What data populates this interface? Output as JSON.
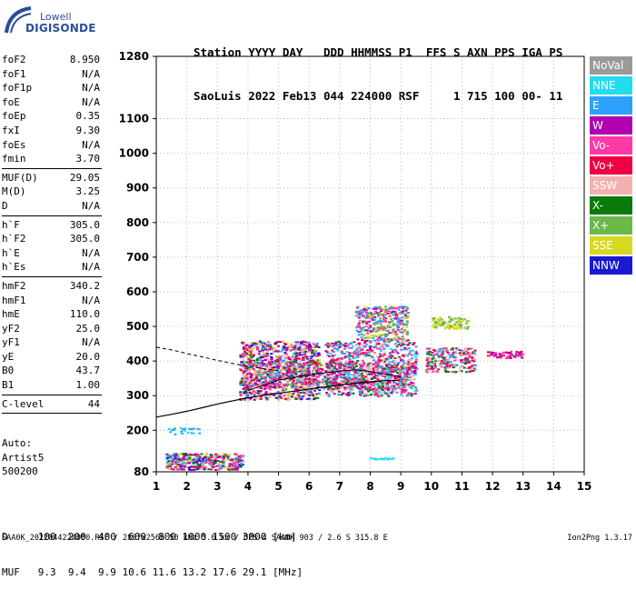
{
  "logo": {
    "line1": "Lowell",
    "line2": "DIGISONDE"
  },
  "header": {
    "line1": "Station YYYY DAY   DDD HHMMSS P1  FFS S AXN PPS IGA PS",
    "line2": "SaoLuis 2022 Feb13 044 224000 RSF     1 715 100 00- 11"
  },
  "params_group1": [
    {
      "k": "foF2",
      "v": "8.950"
    },
    {
      "k": "foF1",
      "v": "N/A"
    },
    {
      "k": "foF1p",
      "v": "N/A"
    },
    {
      "k": "foE",
      "v": "N/A"
    },
    {
      "k": "foEp",
      "v": "0.35"
    },
    {
      "k": "fxI",
      "v": "9.30"
    },
    {
      "k": "foEs",
      "v": "N/A"
    },
    {
      "k": "fmin",
      "v": "3.70"
    }
  ],
  "params_group2": [
    {
      "k": "MUF(D)",
      "v": "29.05"
    },
    {
      "k": "M(D)",
      "v": "3.25"
    },
    {
      "k": "D",
      "v": "N/A"
    }
  ],
  "params_group3": [
    {
      "k": "h`F",
      "v": "305.0"
    },
    {
      "k": "h`F2",
      "v": "305.0"
    },
    {
      "k": "h`E",
      "v": "N/A"
    },
    {
      "k": "h`Es",
      "v": "N/A"
    }
  ],
  "params_group4": [
    {
      "k": "hmF2",
      "v": "340.2"
    },
    {
      "k": "hmF1",
      "v": "N/A"
    },
    {
      "k": "hmE",
      "v": "110.0"
    },
    {
      "k": "yF2",
      "v": "25.0"
    },
    {
      "k": "yF1",
      "v": "N/A"
    },
    {
      "k": "yE",
      "v": "20.0"
    },
    {
      "k": "B0",
      "v": "43.7"
    },
    {
      "k": "B1",
      "v": "1.00"
    }
  ],
  "params_group5": [
    {
      "k": "C-level",
      "v": "44"
    }
  ],
  "auto": {
    "line1": "Auto:",
    "line2": "Artist5",
    "line3": "500200"
  },
  "legend": [
    {
      "label": "NoVal",
      "color": "#9a9a9a"
    },
    {
      "label": "NNE",
      "color": "#22ddee"
    },
    {
      "label": "E",
      "color": "#2ea0ff"
    },
    {
      "label": "W",
      "color": "#b000b0"
    },
    {
      "label": "Vo-",
      "color": "#ff3aa8"
    },
    {
      "label": "Vo+",
      "color": "#ee0044"
    },
    {
      "label": "SSW",
      "color": "#f4b0b0"
    },
    {
      "label": "X-",
      "color": "#0a7a0a"
    },
    {
      "label": "X+",
      "color": "#6cb84a"
    },
    {
      "label": "SSE",
      "color": "#d8d820"
    },
    {
      "label": "NNW",
      "color": "#1a1ad0"
    }
  ],
  "footer": {
    "line1": "D     100  200  400  600  800 1000 1500 3000 [km]",
    "line2": "MUF   9.3  9.4  9.9 10.6 11.6 13.2 17.6 29.1 [MHz]",
    "file": "SAA0K_2022044224000.RSF / 280fx256h 50 kHz 5.0 km / DPS-4 SAA0K 903 / 2.6 S 315.8 E",
    "version": "Ion2Png 1.3.17"
  },
  "chart_data": {
    "type": "scatter",
    "title": "",
    "xlabel": "",
    "ylabel": "",
    "xlim": [
      1,
      15
    ],
    "ylim": [
      80,
      1280
    ],
    "x_ticks": [
      1,
      2,
      3,
      4,
      5,
      6,
      7,
      8,
      9,
      10,
      11,
      12,
      13,
      14,
      15
    ],
    "y_ticks": [
      80,
      200,
      300,
      400,
      500,
      600,
      700,
      800,
      900,
      1000,
      1100,
      1280
    ],
    "grid": true,
    "profile_curve": {
      "x": [
        1.0,
        1.5,
        2.0,
        2.5,
        3.0,
        3.5,
        4.0,
        4.5,
        5.0,
        5.5,
        6.0,
        6.5,
        7.0,
        7.5,
        8.0,
        8.5,
        8.95
      ],
      "y": [
        238,
        246,
        255,
        265,
        276,
        285,
        294,
        301,
        307,
        313,
        319,
        325,
        331,
        336,
        340,
        343,
        345
      ]
    },
    "profile_dashed": {
      "x": [
        1.0,
        1.5,
        2.0,
        2.5,
        3.0,
        3.5,
        4.0,
        4.5,
        5.0
      ],
      "y": [
        440,
        432,
        422,
        412,
        402,
        393,
        384,
        378,
        372
      ]
    },
    "trace_upper": {
      "x": [
        4.0,
        4.5,
        5.0,
        5.5,
        6.0,
        6.5,
        7.0,
        7.5,
        8.0,
        8.5,
        9.0
      ],
      "y": [
        315,
        330,
        345,
        352,
        360,
        366,
        371,
        375,
        370,
        362,
        355
      ]
    },
    "echo_clusters": [
      {
        "x": [
          3.7,
          6.3
        ],
        "y": [
          290,
          460
        ],
        "n": 900,
        "dir": [
          "W",
          "Vo-",
          "Vo+",
          "X-",
          "E",
          "SSE",
          "NNW",
          "SSW"
        ]
      },
      {
        "x": [
          3.8,
          9.3
        ],
        "y": [
          320,
          400
        ],
        "n": 700,
        "dir": [
          "Vo+",
          "Vo-",
          "W",
          "E",
          "X+",
          "SSW"
        ]
      },
      {
        "x": [
          6.5,
          9.5
        ],
        "y": [
          300,
          460
        ],
        "n": 800,
        "dir": [
          "Vo+",
          "Vo-",
          "W",
          "X-",
          "E",
          "SSW",
          "NNE"
        ]
      },
      {
        "x": [
          7.5,
          9.2
        ],
        "y": [
          460,
          560
        ],
        "n": 350,
        "dir": [
          "SSE",
          "Vo-",
          "X+",
          "E",
          "W"
        ]
      },
      {
        "x": [
          9.8,
          11.4
        ],
        "y": [
          370,
          440
        ],
        "n": 250,
        "dir": [
          "Vo+",
          "Vo-",
          "SSW",
          "X-",
          "E"
        ]
      },
      {
        "x": [
          10.0,
          11.2
        ],
        "y": [
          495,
          530
        ],
        "n": 80,
        "dir": [
          "SSE",
          "X+"
        ]
      },
      {
        "x": [
          11.8,
          13.0
        ],
        "y": [
          410,
          430
        ],
        "n": 60,
        "dir": [
          "Vo+",
          "W",
          "Vo-"
        ]
      },
      {
        "x": [
          1.3,
          3.8
        ],
        "y": [
          88,
          135
        ],
        "n": 350,
        "dir": [
          "NNE",
          "E",
          "Vo-",
          "SSE",
          "X-",
          "NNW",
          "W",
          "Vo+"
        ]
      },
      {
        "x": [
          1.2,
          2.4
        ],
        "y": [
          190,
          210
        ],
        "n": 25,
        "dir": [
          "NNE",
          "E"
        ]
      },
      {
        "x": [
          7.9,
          8.8
        ],
        "y": [
          118,
          122
        ],
        "n": 18,
        "dir": [
          "NNE"
        ]
      }
    ]
  }
}
